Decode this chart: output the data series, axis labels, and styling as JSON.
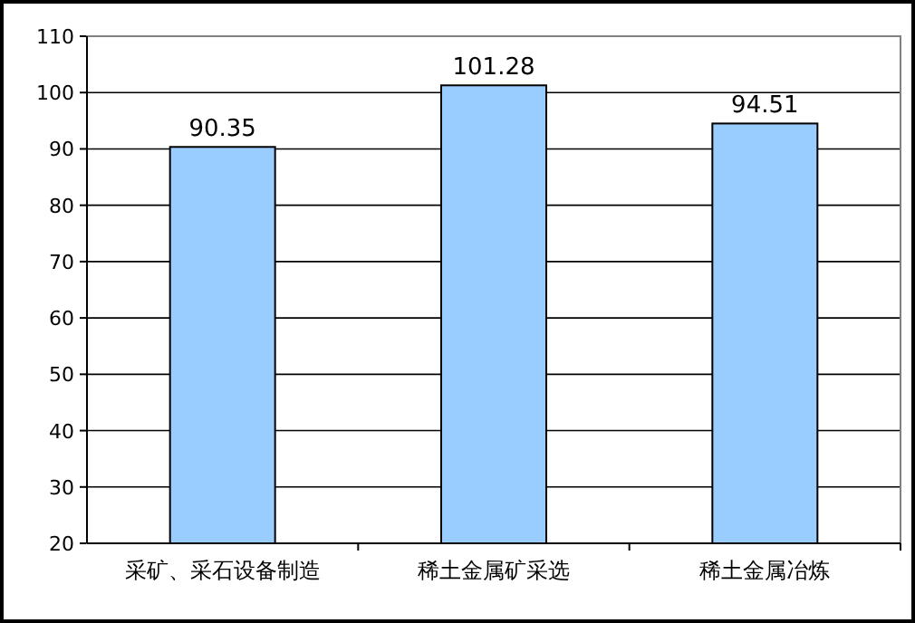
{
  "chart_data": {
    "type": "bar",
    "categories": [
      "采矿、采石设备制造",
      "稀土金属矿采选",
      "稀土金属冶炼"
    ],
    "values": [
      90.35,
      101.28,
      94.51
    ],
    "color": "#99ccff",
    "ylim": [
      20,
      110
    ],
    "yticks": [
      20,
      30,
      40,
      50,
      60,
      70,
      80,
      90,
      100,
      110
    ],
    "grid": "y",
    "data_labels": true
  }
}
